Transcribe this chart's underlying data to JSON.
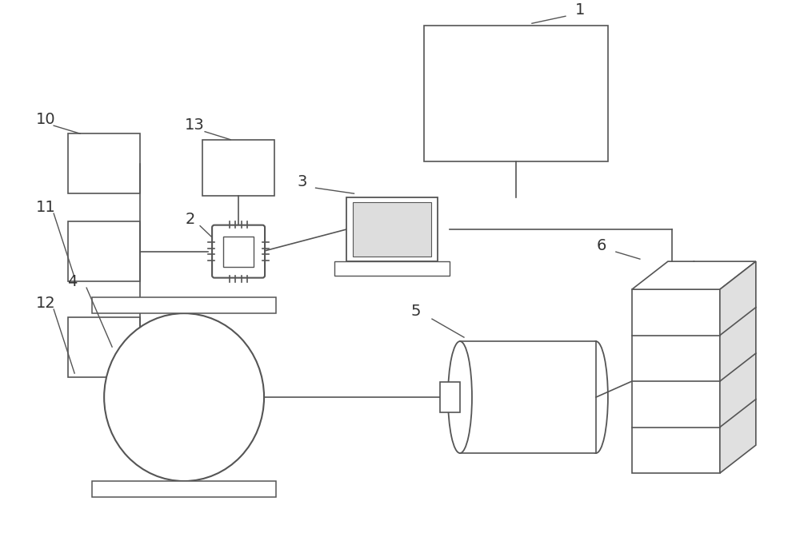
{
  "bg_color": "#ffffff",
  "lc": "#555555",
  "lw": 1.2,
  "fs": 14,
  "fig_w": 10.0,
  "fig_h": 6.82
}
